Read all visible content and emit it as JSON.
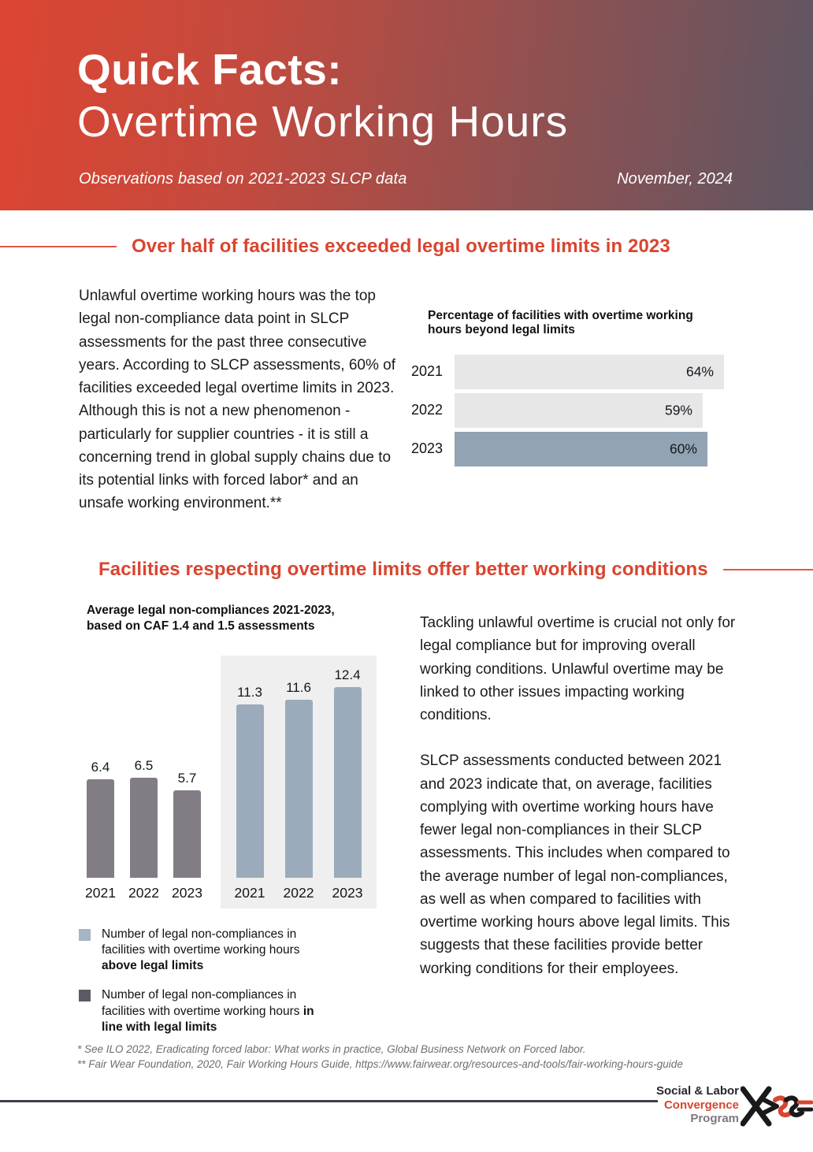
{
  "header": {
    "title_bold": "Quick Facts:",
    "title_light": "Overtime Working Hours",
    "subtitle": "Observations based on 2021-2023 SLCP data",
    "date": "November, 2024"
  },
  "section1": {
    "heading": "Over half of facilities exceeded legal overtime limits in 2023",
    "body": "Unlawful overtime working hours was the top legal non-compliance data point in SLCP assessments for the past three consecutive years. According to SLCP assessments, 60% of facilities exceeded legal overtime limits in 2023. Although this is not a new phenomenon - particularly for supplier countries - it is still a concerning trend in global supply chains due to its potential links with forced labor* and an unsafe working environment.**"
  },
  "section2": {
    "heading": "Facilities respecting overtime limits offer better working conditions",
    "para1": "Tackling unlawful overtime is crucial not only for legal compliance but for improving overall working conditions. Unlawful overtime may be linked to other issues impacting working conditions.",
    "para2": "SLCP assessments conducted between 2021 and 2023 indicate that, on average, facilities complying with overtime working hours have fewer legal non-compliances in their SLCP assessments. This includes when compared to the average number of legal non-compliances, as well as when compared to facilities with overtime working hours above legal limits. This suggests that these facilities provide better working conditions for their employees."
  },
  "chart_data": [
    {
      "type": "bar",
      "orientation": "horizontal",
      "title": "Percentage of facilities with overtime working hours beyond legal limits",
      "categories": [
        "2021",
        "2022",
        "2023"
      ],
      "values": [
        64,
        59,
        60
      ],
      "value_labels": [
        "64%",
        "59%",
        "60%"
      ],
      "xlim": [
        0,
        64
      ],
      "bar_colors": [
        "#e7e7e8",
        "#e7e7e8",
        "#92a3b3"
      ],
      "grid": false,
      "legend_position": "none"
    },
    {
      "type": "bar",
      "orientation": "vertical",
      "title": "Average legal non-compliances 2021-2023, based on CAF 1.4 and 1.5 assessments",
      "categories": [
        "2021",
        "2022",
        "2023"
      ],
      "series": [
        {
          "name": "facilities with overtime working hours in line with legal limits",
          "values": [
            6.4,
            6.5,
            5.7
          ],
          "color": "#827d85"
        },
        {
          "name": "facilities with overtime working hours above legal limits",
          "values": [
            11.3,
            11.6,
            12.4
          ],
          "color": "#9babbb",
          "panel_color": "#f0efef"
        }
      ],
      "ylim": [
        0,
        13
      ],
      "grid": false,
      "legend_position": "below",
      "legend": [
        {
          "color": "#a5b5c4",
          "text_normal": "Number of legal non-compliances in facilities with overtime working hours ",
          "text_bold": "above legal limits"
        },
        {
          "color": "#5d5a66",
          "text_normal": "Number of legal non-compliances in facilities with overtime working hours ",
          "text_bold": "in line with legal limits"
        }
      ]
    }
  ],
  "footnotes": {
    "line1": "* See ILO 2022, Eradicating forced labor: What works in practice, Global Business Network on Forced labor.",
    "line2": "** Fair Wear Foundation, 2020, Fair Working Hours Guide, https://www.fairwear.org/resources-and-tools/fair-working-hours-guide"
  },
  "footer": {
    "logo_line1": "Social & Labor",
    "logo_line2": "Convergence",
    "logo_line3": "Program"
  },
  "colors": {
    "accent_red": "#d9452f",
    "header_gradient_start": "#dc4531",
    "header_gradient_end": "#5e5663",
    "footer_line": "#3e4049"
  }
}
